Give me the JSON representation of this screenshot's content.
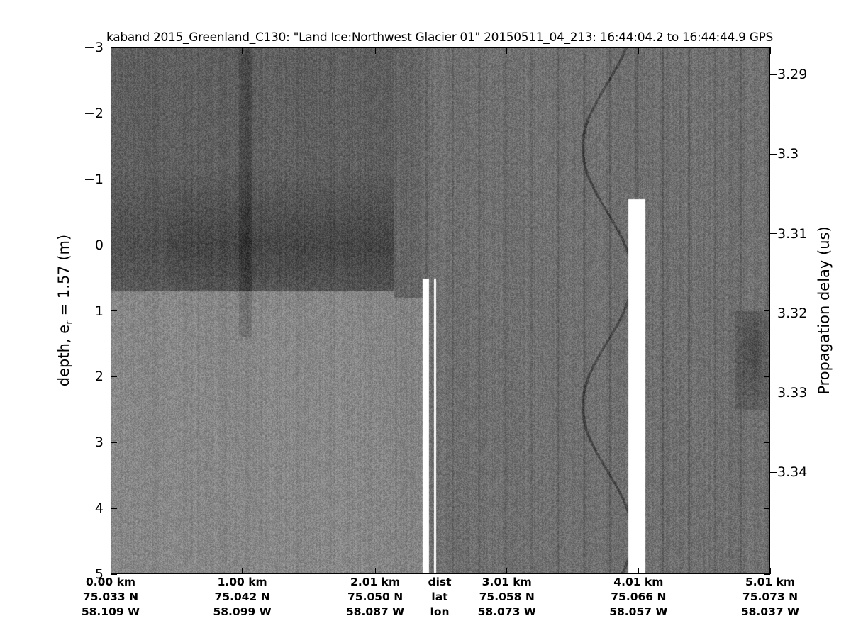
{
  "chart_data": {
    "type": "heatmap",
    "title": "kaband 2015_Greenland_C130: \"Land Ice:Northwest Glacier 01\"  20150511_04_213: 16:44:04.2 to 16:44:44.9 GPS",
    "ylabel_main": "depth, e",
    "ylabel_sub": "r",
    "ylabel_rest": " = 1.57 (m)",
    "y2label": "Propagation delay (us)",
    "colormap": "gray",
    "ylim": [
      -3,
      5
    ],
    "yticks": [
      "-3",
      "-2",
      "-1",
      "0",
      "1",
      "2",
      "3",
      "4",
      "5"
    ],
    "y2lim": [
      3.2866,
      3.3528
    ],
    "y2ticks": [
      3.29,
      3.3,
      3.31,
      3.32,
      3.33,
      3.34
    ],
    "y2tick_labels": [
      "3.29",
      "3.3",
      "3.31",
      "3.32",
      "3.33",
      "3.34"
    ],
    "xlim_km": [
      0,
      5.01
    ],
    "xticks_km": [
      0,
      1.0,
      2.01,
      3.01,
      4.01,
      5.01
    ],
    "x_row_labels": [
      "dist",
      "lat",
      "lon"
    ],
    "xtick_labels": [
      {
        "dist": "0.00 km",
        "lat": "75.033 N",
        "lon": "58.109 W"
      },
      {
        "dist": "1.00 km",
        "lat": "75.042 N",
        "lon": "58.099 W"
      },
      {
        "dist": "2.01 km",
        "lat": "75.050 N",
        "lon": "58.087 W"
      },
      {
        "dist": "3.01 km",
        "lat": "75.058 N",
        "lon": "58.073 W"
      },
      {
        "dist": "4.01 km",
        "lat": "75.066 N",
        "lon": "58.057 W"
      },
      {
        "dist": "5.01 km",
        "lat": "75.073 N",
        "lon": "58.037 W"
      }
    ],
    "features": [
      {
        "name": "dark near-surface layer",
        "x_km": [
          0,
          2.1
        ],
        "depth_m": [
          -3,
          0.8
        ]
      },
      {
        "name": "data gap",
        "x_km": [
          2.37,
          2.47
        ],
        "depth_m": [
          0.5,
          5
        ]
      },
      {
        "name": "data gap",
        "x_km": [
          3.92,
          4.06
        ],
        "depth_m": [
          -0.7,
          5
        ]
      },
      {
        "name": "dark patch",
        "x_km": [
          4.75,
          5.01
        ],
        "depth_m": [
          1.0,
          2.3
        ]
      }
    ],
    "grid": false
  }
}
